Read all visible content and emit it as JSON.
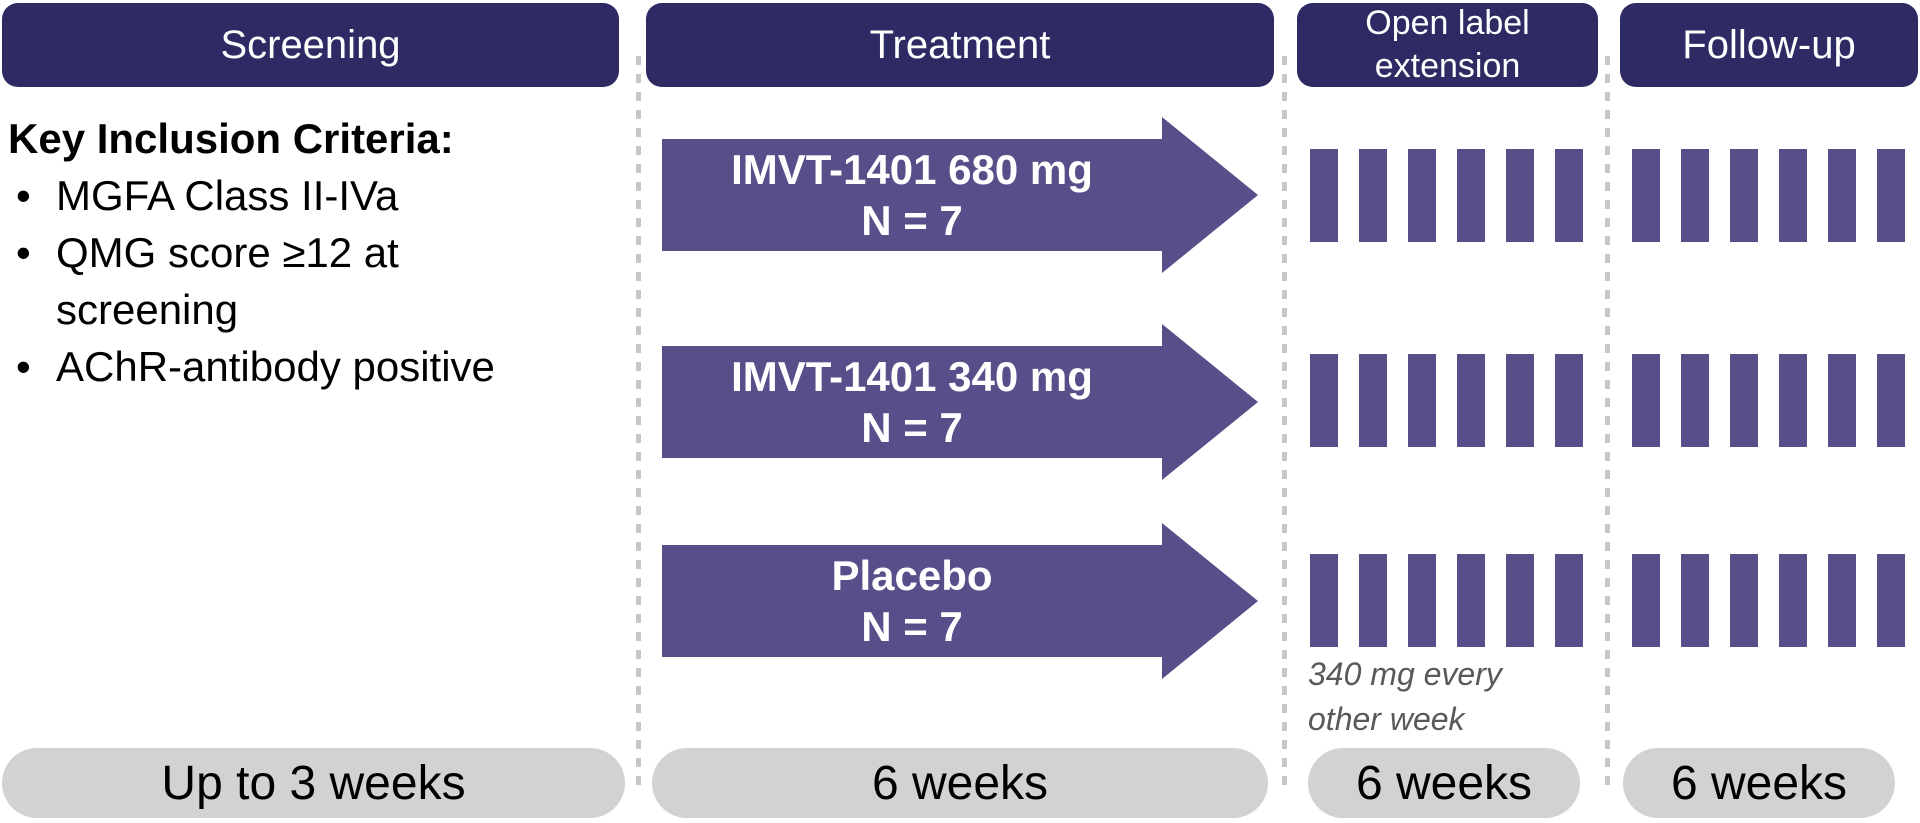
{
  "columns": [
    {
      "header": "Screening",
      "duration": "Up to 3 weeks"
    },
    {
      "header": "Treatment",
      "duration": "6 weeks"
    },
    {
      "header": "Open label extension",
      "duration": "6 weeks"
    },
    {
      "header": "Follow-up",
      "duration": "6 weeks"
    }
  ],
  "screening": {
    "title": "Key Inclusion Criteria:",
    "bullets": [
      "MGFA Class II-IVa",
      "QMG score ≥12 at screening",
      "AChR-antibody positive"
    ]
  },
  "treatment": {
    "arms": [
      {
        "label": "IMVT-1401 680 mg",
        "n": "N = 7"
      },
      {
        "label": "IMVT-1401 340 mg",
        "n": "N = 7"
      },
      {
        "label": "Placebo",
        "n": "N = 7"
      }
    ]
  },
  "extension": {
    "rows": 3,
    "ticks_per_row": 6,
    "note": "340 mg every other week"
  },
  "follow_up": {
    "rows": 3,
    "ticks_per_row": 6
  },
  "colors": {
    "header_bg": "#2E2A63",
    "header_text": "#FFFFFF",
    "arm_fill": "#564F8A",
    "duration_pill_bg": "#D2D2D2",
    "note_text": "#595959",
    "divider": "#C7C7C7",
    "body_text": "#000000"
  }
}
